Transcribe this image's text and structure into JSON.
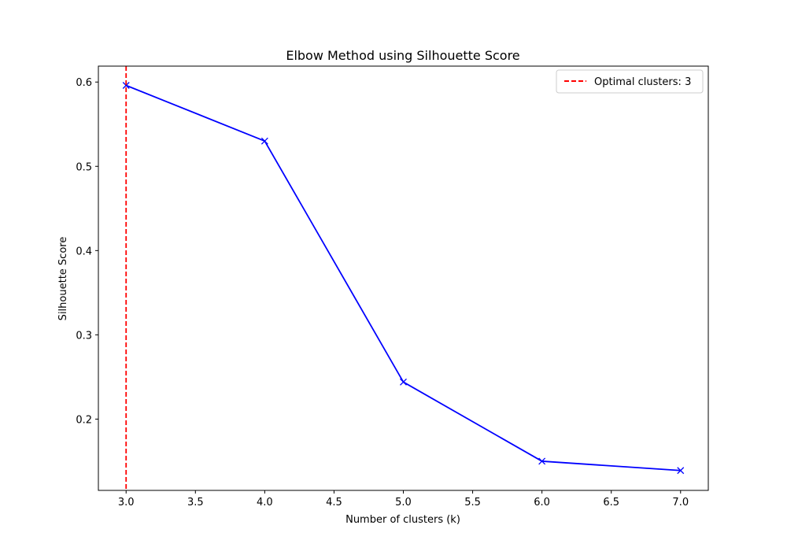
{
  "chart_data": {
    "type": "line",
    "title": "Elbow Method using Silhouette Score",
    "xlabel": "Number of clusters (k)",
    "ylabel": "Silhouette Score",
    "x": [
      3,
      4,
      5,
      6,
      7
    ],
    "series": [
      {
        "values": [
          0.596,
          0.53,
          0.244,
          0.15,
          0.139
        ],
        "color": "#0000ff",
        "marker": "x"
      }
    ],
    "xlim": [
      2.8,
      7.2
    ],
    "ylim": [
      0.1154,
      0.6189
    ],
    "xticks": [
      3.0,
      3.5,
      4.0,
      4.5,
      5.0,
      5.5,
      6.0,
      6.5,
      7.0
    ],
    "xtick_labels": [
      "3.0",
      "3.5",
      "4.0",
      "4.5",
      "5.0",
      "5.5",
      "6.0",
      "6.5",
      "7.0"
    ],
    "yticks": [
      0.2,
      0.3,
      0.4,
      0.5,
      0.6
    ],
    "ytick_labels": [
      "0.2",
      "0.3",
      "0.4",
      "0.5",
      "0.6"
    ],
    "vline": {
      "x": 3,
      "label": "Optimal clusters: 3",
      "color": "#ff0000",
      "style": "dashed"
    },
    "grid": false,
    "legend": {
      "placement": "top-right",
      "entries": [
        "Optimal clusters: 3"
      ]
    }
  }
}
